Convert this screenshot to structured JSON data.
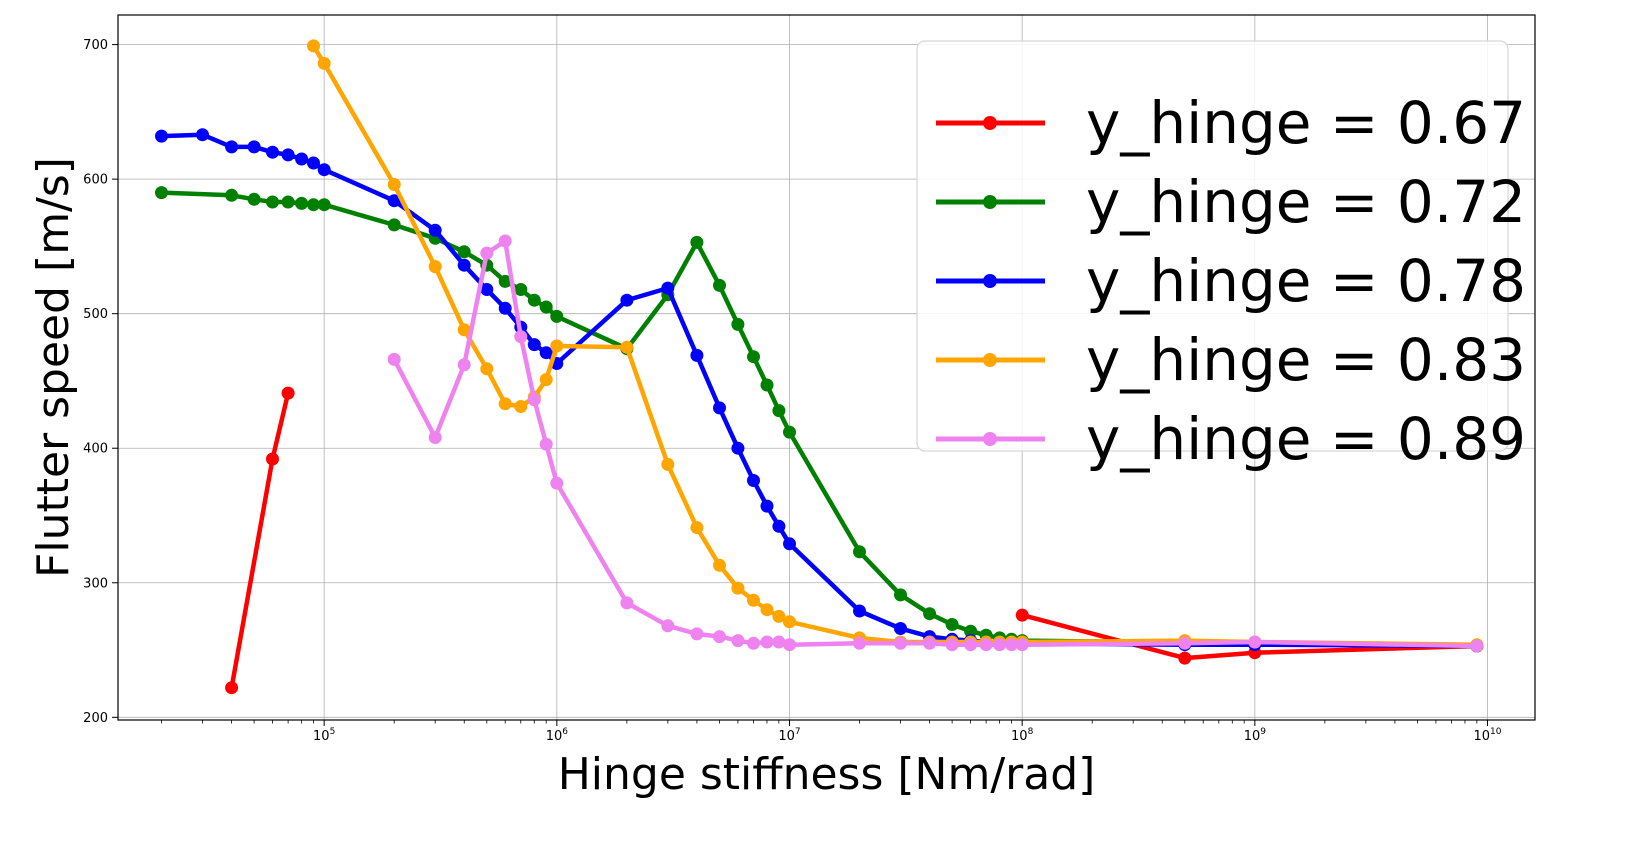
{
  "chart_data": {
    "type": "line",
    "title": "",
    "xlabel": "Hinge stiffness [Nm/rad]",
    "ylabel": "Flutter speed [m/s]",
    "xscale": "log",
    "xlim": [
      13000,
      16000000000
    ],
    "ylim": [
      198,
      722
    ],
    "x_ticks": [
      {
        "value": 100000,
        "base": "10",
        "exp": "5"
      },
      {
        "value": 1000000,
        "base": "10",
        "exp": "6"
      },
      {
        "value": 10000000,
        "base": "10",
        "exp": "7"
      },
      {
        "value": 100000000,
        "base": "10",
        "exp": "8"
      },
      {
        "value": 1000000000,
        "base": "10",
        "exp": "9"
      },
      {
        "value": 10000000000,
        "base": "10",
        "exp": "10"
      }
    ],
    "y_ticks": [
      {
        "value": 200,
        "label": "200"
      },
      {
        "value": 300,
        "label": "300"
      },
      {
        "value": 400,
        "label": "400"
      },
      {
        "value": 500,
        "label": "500"
      },
      {
        "value": 600,
        "label": "600"
      },
      {
        "value": 700,
        "label": "700"
      }
    ],
    "grid": true,
    "legend_position": "top-right",
    "series": [
      {
        "name": "y_hinge = 0.67",
        "color": "#ff0000",
        "points": [
          {
            "x": 40000,
            "y": 222
          },
          {
            "x": 60000,
            "y": 392
          },
          {
            "x": 70000,
            "y": 441
          },
          {
            "x": 100000000,
            "y": 276
          },
          {
            "x": 500000000,
            "y": 244
          },
          {
            "x": 1000000000,
            "y": 248
          },
          {
            "x": 9000000000,
            "y": 253
          }
        ],
        "segments": [
          [
            0,
            3
          ],
          [
            3,
            7
          ]
        ]
      },
      {
        "name": "y_hinge = 0.72",
        "color": "#008000",
        "points": [
          {
            "x": 20000,
            "y": 590
          },
          {
            "x": 40000,
            "y": 588
          },
          {
            "x": 50000,
            "y": 585
          },
          {
            "x": 60000,
            "y": 583
          },
          {
            "x": 70000,
            "y": 583
          },
          {
            "x": 80000,
            "y": 582
          },
          {
            "x": 90000,
            "y": 581
          },
          {
            "x": 100000,
            "y": 581
          },
          {
            "x": 200000,
            "y": 566
          },
          {
            "x": 300000,
            "y": 556
          },
          {
            "x": 400000,
            "y": 546
          },
          {
            "x": 500000,
            "y": 536
          },
          {
            "x": 600000,
            "y": 524
          },
          {
            "x": 700000,
            "y": 518
          },
          {
            "x": 800000,
            "y": 510
          },
          {
            "x": 900000,
            "y": 505
          },
          {
            "x": 1000000,
            "y": 498
          },
          {
            "x": 2000000,
            "y": 474
          },
          {
            "x": 3000000,
            "y": 514
          },
          {
            "x": 4000000,
            "y": 553
          },
          {
            "x": 5000000,
            "y": 521
          },
          {
            "x": 6000000,
            "y": 492
          },
          {
            "x": 7000000,
            "y": 468
          },
          {
            "x": 8000000,
            "y": 447
          },
          {
            "x": 9000000,
            "y": 428
          },
          {
            "x": 10000000,
            "y": 412
          },
          {
            "x": 20000000,
            "y": 323
          },
          {
            "x": 30000000,
            "y": 291
          },
          {
            "x": 40000000,
            "y": 277
          },
          {
            "x": 50000000,
            "y": 269
          },
          {
            "x": 60000000,
            "y": 264
          },
          {
            "x": 70000000,
            "y": 261
          },
          {
            "x": 80000000,
            "y": 259
          },
          {
            "x": 90000000,
            "y": 258
          },
          {
            "x": 100000000,
            "y": 257
          },
          {
            "x": 9000000000,
            "y": 253
          }
        ]
      },
      {
        "name": "y_hinge = 0.78",
        "color": "#0000ff",
        "points": [
          {
            "x": 20000,
            "y": 632
          },
          {
            "x": 30000,
            "y": 633
          },
          {
            "x": 40000,
            "y": 624
          },
          {
            "x": 50000,
            "y": 624
          },
          {
            "x": 60000,
            "y": 620
          },
          {
            "x": 70000,
            "y": 618
          },
          {
            "x": 80000,
            "y": 615
          },
          {
            "x": 90000,
            "y": 612
          },
          {
            "x": 100000,
            "y": 607
          },
          {
            "x": 200000,
            "y": 584
          },
          {
            "x": 300000,
            "y": 562
          },
          {
            "x": 400000,
            "y": 536
          },
          {
            "x": 500000,
            "y": 518
          },
          {
            "x": 600000,
            "y": 504
          },
          {
            "x": 700000,
            "y": 490
          },
          {
            "x": 800000,
            "y": 477
          },
          {
            "x": 900000,
            "y": 471
          },
          {
            "x": 1000000,
            "y": 463
          },
          {
            "x": 2000000,
            "y": 510
          },
          {
            "x": 3000000,
            "y": 519
          },
          {
            "x": 4000000,
            "y": 469
          },
          {
            "x": 5000000,
            "y": 430
          },
          {
            "x": 6000000,
            "y": 400
          },
          {
            "x": 7000000,
            "y": 376
          },
          {
            "x": 8000000,
            "y": 357
          },
          {
            "x": 9000000,
            "y": 342
          },
          {
            "x": 10000000,
            "y": 329
          },
          {
            "x": 20000000,
            "y": 279
          },
          {
            "x": 30000000,
            "y": 266
          },
          {
            "x": 40000000,
            "y": 260
          },
          {
            "x": 50000000,
            "y": 258
          },
          {
            "x": 60000000,
            "y": 257
          },
          {
            "x": 70000000,
            "y": 256
          },
          {
            "x": 80000000,
            "y": 256
          },
          {
            "x": 90000000,
            "y": 255
          },
          {
            "x": 100000000,
            "y": 255
          },
          {
            "x": 500000000,
            "y": 254
          },
          {
            "x": 1000000000,
            "y": 254
          },
          {
            "x": 9000000000,
            "y": 253
          }
        ]
      },
      {
        "name": "y_hinge = 0.83",
        "color": "#ffa500",
        "points": [
          {
            "x": 90000,
            "y": 699
          },
          {
            "x": 100000,
            "y": 686
          },
          {
            "x": 200000,
            "y": 596
          },
          {
            "x": 300000,
            "y": 535
          },
          {
            "x": 400000,
            "y": 488
          },
          {
            "x": 500000,
            "y": 459
          },
          {
            "x": 600000,
            "y": 433
          },
          {
            "x": 700000,
            "y": 431
          },
          {
            "x": 800000,
            "y": 438
          },
          {
            "x": 900000,
            "y": 451
          },
          {
            "x": 1000000,
            "y": 476
          },
          {
            "x": 2000000,
            "y": 475
          },
          {
            "x": 3000000,
            "y": 388
          },
          {
            "x": 4000000,
            "y": 341
          },
          {
            "x": 5000000,
            "y": 313
          },
          {
            "x": 6000000,
            "y": 296
          },
          {
            "x": 7000000,
            "y": 287
          },
          {
            "x": 8000000,
            "y": 280
          },
          {
            "x": 9000000,
            "y": 275
          },
          {
            "x": 10000000,
            "y": 271
          },
          {
            "x": 20000000,
            "y": 259
          },
          {
            "x": 30000000,
            "y": 256
          },
          {
            "x": 40000000,
            "y": 256
          },
          {
            "x": 50000000,
            "y": 256
          },
          {
            "x": 60000000,
            "y": 256
          },
          {
            "x": 70000000,
            "y": 256
          },
          {
            "x": 80000000,
            "y": 256
          },
          {
            "x": 90000000,
            "y": 256
          },
          {
            "x": 100000000,
            "y": 256
          },
          {
            "x": 500000000,
            "y": 257
          },
          {
            "x": 1000000000,
            "y": 256
          },
          {
            "x": 9000000000,
            "y": 254
          }
        ]
      },
      {
        "name": "y_hinge = 0.89",
        "color": "#ee82ee",
        "points": [
          {
            "x": 200000,
            "y": 466
          },
          {
            "x": 300000,
            "y": 408
          },
          {
            "x": 400000,
            "y": 462
          },
          {
            "x": 500000,
            "y": 545
          },
          {
            "x": 600000,
            "y": 554
          },
          {
            "x": 700000,
            "y": 483
          },
          {
            "x": 800000,
            "y": 436
          },
          {
            "x": 900000,
            "y": 403
          },
          {
            "x": 1000000,
            "y": 374
          },
          {
            "x": 2000000,
            "y": 285
          },
          {
            "x": 3000000,
            "y": 268
          },
          {
            "x": 4000000,
            "y": 262
          },
          {
            "x": 5000000,
            "y": 260
          },
          {
            "x": 6000000,
            "y": 257
          },
          {
            "x": 7000000,
            "y": 255
          },
          {
            "x": 8000000,
            "y": 256
          },
          {
            "x": 9000000,
            "y": 256
          },
          {
            "x": 10000000,
            "y": 254
          },
          {
            "x": 20000000,
            "y": 255
          },
          {
            "x": 30000000,
            "y": 255
          },
          {
            "x": 40000000,
            "y": 255
          },
          {
            "x": 50000000,
            "y": 254
          },
          {
            "x": 60000000,
            "y": 254
          },
          {
            "x": 70000000,
            "y": 254
          },
          {
            "x": 80000000,
            "y": 254
          },
          {
            "x": 90000000,
            "y": 254
          },
          {
            "x": 100000000,
            "y": 254
          },
          {
            "x": 500000000,
            "y": 255
          },
          {
            "x": 1000000000,
            "y": 256
          },
          {
            "x": 9000000000,
            "y": 253
          }
        ]
      }
    ]
  }
}
